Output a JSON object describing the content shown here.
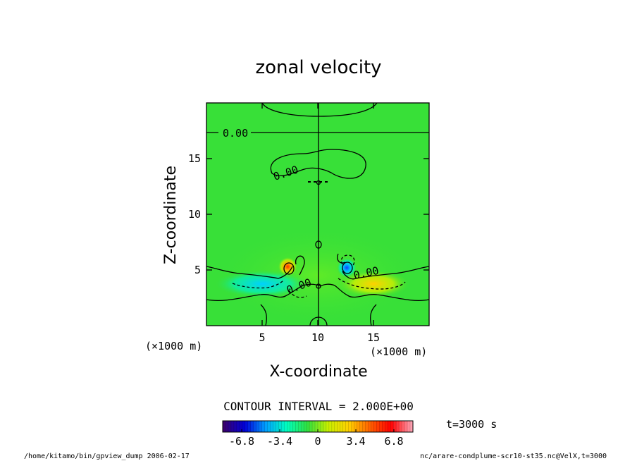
{
  "chart_data": {
    "type": "heatmap",
    "title": "zonal velocity",
    "xlabel": "X-coordinate",
    "ylabel": "Z-coordinate",
    "x_unit": "(×1000 m)",
    "y_unit": "(×1000 m)",
    "xlim": [
      0,
      20
    ],
    "ylim": [
      0,
      20
    ],
    "x_ticks": [
      "5",
      "10",
      "15"
    ],
    "x_tick_values": [
      5,
      10,
      15
    ],
    "y_ticks": [
      "5",
      "10",
      "15"
    ],
    "y_tick_values": [
      5,
      10,
      15
    ],
    "contour_interval_text": "CONTOUR INTERVAL = 2.000E+00",
    "contour_labels": [
      "0.00",
      "0.00",
      "0.00",
      "0.00"
    ],
    "time_label": "t=3000 s",
    "colorbar": {
      "min": -8.5,
      "max": 8.5,
      "tick_labels": [
        "-6.8",
        "-3.4",
        "0",
        "3.4",
        "6.8"
      ],
      "tick_values": [
        -6.8,
        -3.4,
        0,
        3.4,
        6.8
      ],
      "colors": [
        "#3a0070",
        "#0000d8",
        "#00a0ff",
        "#00ffc0",
        "#30e040",
        "#c8f000",
        "#ffd000",
        "#ff6000",
        "#ff0000",
        "#ff9fb0"
      ]
    },
    "background_color": "#38e038",
    "features": [
      {
        "kind": "positive",
        "x": 7.3,
        "z": 5.3,
        "value": 6.0
      },
      {
        "kind": "negative",
        "x": 12.6,
        "z": 5.2,
        "value": -6.0
      },
      {
        "kind": "negative_band",
        "x_range": [
          1.5,
          8.5
        ],
        "z_range": [
          3.0,
          4.5
        ],
        "value": -2.5
      },
      {
        "kind": "positive_band",
        "x_range": [
          12.5,
          17.5
        ],
        "z_range": [
          3.0,
          4.5
        ],
        "value": 2.5
      }
    ]
  },
  "footer": {
    "left": "/home/kitamo/bin/gpview_dump  2006-02-17",
    "right": "nc/arare-condplume-scr10-st35.nc@VelX,t=3000"
  }
}
